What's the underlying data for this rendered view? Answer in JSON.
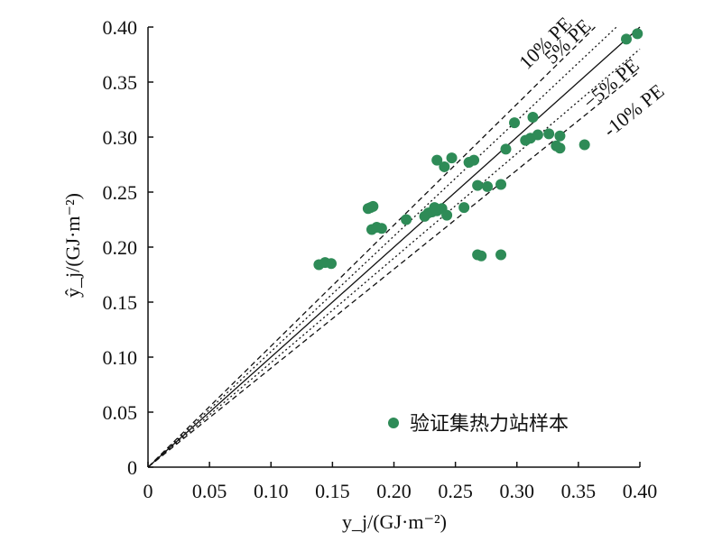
{
  "chart_data": {
    "type": "scatter",
    "title": "",
    "xlabel": "y_j/(GJ·m⁻²)",
    "ylabel": "ŷ_j/(GJ·m⁻²)",
    "xlim": [
      0,
      0.4
    ],
    "ylim": [
      0,
      0.4
    ],
    "x_ticks": [
      "0",
      "0.05",
      "0.10",
      "0.15",
      "0.20",
      "0.25",
      "0.30",
      "0.35",
      "0.40"
    ],
    "y_ticks": [
      "0",
      "0.05",
      "0.10",
      "0.15",
      "0.20",
      "0.25",
      "0.30",
      "0.35",
      "0.40"
    ],
    "grid": false,
    "legend_position": "bottom-right",
    "colors": {
      "points": "#2e8b57",
      "lines": "#111111"
    },
    "reference_lines": [
      {
        "label": "10% PE",
        "slope": 1.1,
        "style": "dashed"
      },
      {
        "label": "5% PE",
        "slope": 1.05,
        "style": "dotted"
      },
      {
        "label": "",
        "slope": 1.0,
        "style": "solid"
      },
      {
        "label": "−5% PE",
        "slope": 0.95,
        "style": "dotted"
      },
      {
        "label": "-10% PE",
        "slope": 0.9,
        "style": "dashed"
      }
    ],
    "series": [
      {
        "name": "验证集热力站样本",
        "points": [
          [
            0.139,
            0.184
          ],
          [
            0.144,
            0.186
          ],
          [
            0.149,
            0.185
          ],
          [
            0.179,
            0.235
          ],
          [
            0.181,
            0.236
          ],
          [
            0.183,
            0.237
          ],
          [
            0.182,
            0.216
          ],
          [
            0.186,
            0.218
          ],
          [
            0.19,
            0.217
          ],
          [
            0.21,
            0.225
          ],
          [
            0.225,
            0.228
          ],
          [
            0.228,
            0.231
          ],
          [
            0.231,
            0.232
          ],
          [
            0.235,
            0.233
          ],
          [
            0.239,
            0.235
          ],
          [
            0.243,
            0.229
          ],
          [
            0.233,
            0.236
          ],
          [
            0.235,
            0.279
          ],
          [
            0.241,
            0.273
          ],
          [
            0.247,
            0.281
          ],
          [
            0.261,
            0.277
          ],
          [
            0.265,
            0.279
          ],
          [
            0.257,
            0.236
          ],
          [
            0.268,
            0.256
          ],
          [
            0.276,
            0.255
          ],
          [
            0.287,
            0.257
          ],
          [
            0.268,
            0.193
          ],
          [
            0.271,
            0.192
          ],
          [
            0.287,
            0.193
          ],
          [
            0.291,
            0.289
          ],
          [
            0.298,
            0.313
          ],
          [
            0.313,
            0.318
          ],
          [
            0.307,
            0.297
          ],
          [
            0.311,
            0.299
          ],
          [
            0.317,
            0.302
          ],
          [
            0.326,
            0.303
          ],
          [
            0.332,
            0.292
          ],
          [
            0.335,
            0.29
          ],
          [
            0.335,
            0.301
          ],
          [
            0.355,
            0.293
          ],
          [
            0.389,
            0.389
          ],
          [
            0.398,
            0.394
          ]
        ]
      }
    ]
  }
}
